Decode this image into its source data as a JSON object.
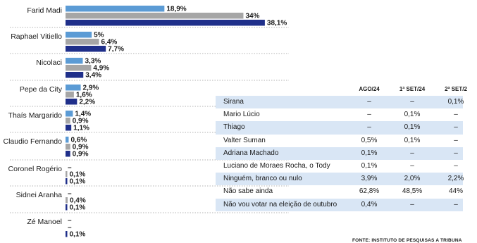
{
  "chart_data": [
    {
      "type": "bar",
      "orientation": "horizontal",
      "categories": [
        "Farid Madi",
        "Raphael Vitiello",
        "Nicolaci",
        "Pepe da City",
        "Thaís Margarido",
        "Claudio Fernando",
        "Coronel Rogério",
        "Sidnei Aranha",
        "Zé Manoel"
      ],
      "series": [
        {
          "values": [
            18.9,
            5,
            3.3,
            2.9,
            1.4,
            0.6,
            null,
            null,
            null
          ],
          "labels": [
            "18,9%",
            "5%",
            "3,3%",
            "2,9%",
            "1,4%",
            "0,6%",
            "–",
            "–",
            "–"
          ],
          "color": "#5b9bd5"
        },
        {
          "values": [
            34,
            6.4,
            4.9,
            1.6,
            0.9,
            0.9,
            0.1,
            0.4,
            null
          ],
          "labels": [
            "34%",
            "6,4%",
            "4,9%",
            "1,6%",
            "0,9%",
            "0,9%",
            "0,1%",
            "0,4%",
            "–"
          ],
          "color": "#a6a6a6"
        },
        {
          "values": [
            38.1,
            7.7,
            3.4,
            2.2,
            1.1,
            0.9,
            0.1,
            0.1,
            0.1
          ],
          "labels": [
            "38,1%",
            "7,7%",
            "3,4%",
            "2,2%",
            "1,1%",
            "0,9%",
            "0,1%",
            "0,1%",
            "0,1%"
          ],
          "color": "#1f2f8a"
        }
      ],
      "xlim": [
        0,
        40
      ],
      "grid": false
    },
    {
      "type": "table",
      "columns": [
        "AGO/24",
        "1ª SET/24",
        "2ª SET/2"
      ],
      "rows": [
        {
          "name": "Sirana",
          "values": [
            "–",
            "–",
            "0,1%"
          ]
        },
        {
          "name": "Mario Lúcio",
          "values": [
            "–",
            "0,1%",
            "–"
          ]
        },
        {
          "name": "Thiago",
          "values": [
            "–",
            "0,1%",
            "–"
          ]
        },
        {
          "name": "Valter Suman",
          "values": [
            "0,5%",
            "0,1%",
            "–"
          ]
        },
        {
          "name": "Adriana Machado",
          "values": [
            "0,1%",
            "–",
            "–"
          ]
        },
        {
          "name": "Luciano de Moraes Rocha, o Tody",
          "values": [
            "0,1%",
            "–",
            "–"
          ]
        },
        {
          "name": "Ninguém, branco ou nulo",
          "values": [
            "3,9%",
            "2,0%",
            "2,2%"
          ]
        },
        {
          "name": "Não sabe ainda",
          "values": [
            "62,8%",
            "48,5%",
            "44%"
          ]
        },
        {
          "name": "Não vou votar na eleição de outubro",
          "values": [
            "0,4%",
            "–",
            "–"
          ]
        }
      ]
    }
  ],
  "source_text": "FONTE: INSTITUTO DE PESQUISAS A TRIBUNA"
}
